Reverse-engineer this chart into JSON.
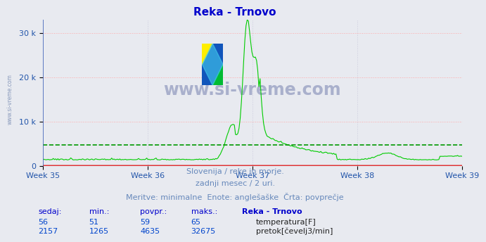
{
  "title": "Reka - Trnovo",
  "title_color": "#0000cc",
  "bg_color": "#e8eaf0",
  "plot_bg_color": "#e8eaf0",
  "grid_color_h": "#ffaaaa",
  "grid_color_v": "#ccccdd",
  "xlabel_weeks": [
    "Week 35",
    "Week 36",
    "Week 37",
    "Week 38",
    "Week 39"
  ],
  "ylim": [
    0,
    33000
  ],
  "yticks": [
    0,
    10000,
    20000,
    30000
  ],
  "ytick_labels": [
    "0",
    "10 k",
    "20 k",
    "30 k"
  ],
  "temperature_color": "#dd0000",
  "flow_color": "#00cc00",
  "avg_flow_color": "#009900",
  "avg_flow_value": 4635,
  "watermark_text": "www.si-vreme.com",
  "subtitle_lines": [
    "Slovenija / reke in morje.",
    "zadnji mesec / 2 uri.",
    "Meritve: minimalne  Enote: anglešaške  Črta: povprečje"
  ],
  "table_headers": [
    "sedaj:",
    "min.:",
    "povpr.:",
    "maks.:",
    "Reka - Trnovo"
  ],
  "table_row1": [
    "56",
    "51",
    "59",
    "65"
  ],
  "table_row2": [
    "2157",
    "1265",
    "4635",
    "32675"
  ],
  "label_temp": "temperatura[F]",
  "label_flow": "pretok[čevelj3/min]",
  "n_points": 360,
  "left_label": "www.si-vreme.com"
}
